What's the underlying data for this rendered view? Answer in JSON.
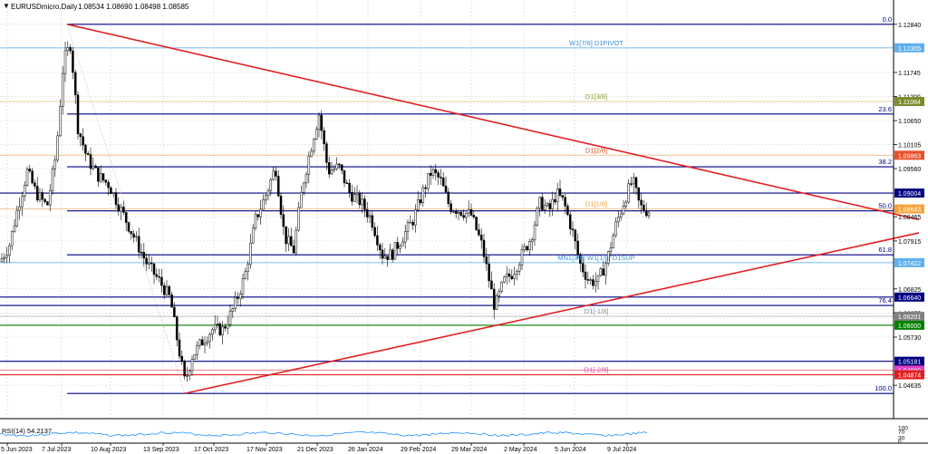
{
  "header": {
    "symbol_label": "EURUSDmicro,Daily",
    "ohlc": "1.08534 1.08690 1.08498 1.08585",
    "menu_icon": "triangle-down-icon"
  },
  "chart_data": {
    "type": "candlestick",
    "symbol": "EURUSDmicro",
    "timeframe": "Daily",
    "ylim": [
      1.04,
      1.1298
    ],
    "price_ticks": [
      "1.12840",
      "1.11745",
      "1.11200",
      "1.10650",
      "1.10105",
      "1.09560",
      "1.08465",
      "1.07915",
      "1.06825",
      "1.06275",
      "1.05730",
      "1.04635"
    ],
    "date_ticks": [
      "5 Jun 2023",
      "7 Jul 2023",
      "10 Aug 2023",
      "13 Sep 2023",
      "17 Oct 2023",
      "17 Nov 2023",
      "21 Dec 2023",
      "26 Jan 2024",
      "29 Feb 2024",
      "29 Mar 2024",
      "2 May 2024",
      "5 Jun 2024",
      "9 Jul 2024"
    ],
    "close_path": [
      {
        "x": 0,
        "y": 1.0745
      },
      {
        "x": 10,
        "y": 1.078
      },
      {
        "x": 20,
        "y": 1.087
      },
      {
        "x": 30,
        "y": 1.095
      },
      {
        "x": 40,
        "y": 1.09
      },
      {
        "x": 52,
        "y": 1.087
      },
      {
        "x": 62,
        "y": 1.099
      },
      {
        "x": 70,
        "y": 1.12
      },
      {
        "x": 78,
        "y": 1.124
      },
      {
        "x": 86,
        "y": 1.105
      },
      {
        "x": 96,
        "y": 1.098
      },
      {
        "x": 108,
        "y": 1.094
      },
      {
        "x": 120,
        "y": 1.092
      },
      {
        "x": 134,
        "y": 1.086
      },
      {
        "x": 148,
        "y": 1.08
      },
      {
        "x": 162,
        "y": 1.074
      },
      {
        "x": 176,
        "y": 1.07
      },
      {
        "x": 188,
        "y": 1.066
      },
      {
        "x": 196,
        "y": 1.056
      },
      {
        "x": 204,
        "y": 1.047
      },
      {
        "x": 212,
        "y": 1.053
      },
      {
        "x": 222,
        "y": 1.056
      },
      {
        "x": 234,
        "y": 1.059
      },
      {
        "x": 246,
        "y": 1.059
      },
      {
        "x": 258,
        "y": 1.064
      },
      {
        "x": 270,
        "y": 1.071
      },
      {
        "x": 282,
        "y": 1.084
      },
      {
        "x": 294,
        "y": 1.09
      },
      {
        "x": 304,
        "y": 1.096
      },
      {
        "x": 314,
        "y": 1.08
      },
      {
        "x": 324,
        "y": 1.077
      },
      {
        "x": 334,
        "y": 1.092
      },
      {
        "x": 346,
        "y": 1.103
      },
      {
        "x": 352,
        "y": 1.108
      },
      {
        "x": 362,
        "y": 1.095
      },
      {
        "x": 374,
        "y": 1.096
      },
      {
        "x": 386,
        "y": 1.09
      },
      {
        "x": 398,
        "y": 1.088
      },
      {
        "x": 410,
        "y": 1.084
      },
      {
        "x": 422,
        "y": 1.076
      },
      {
        "x": 432,
        "y": 1.076
      },
      {
        "x": 444,
        "y": 1.08
      },
      {
        "x": 456,
        "y": 1.084
      },
      {
        "x": 466,
        "y": 1.09
      },
      {
        "x": 476,
        "y": 1.095
      },
      {
        "x": 486,
        "y": 1.093
      },
      {
        "x": 496,
        "y": 1.087
      },
      {
        "x": 508,
        "y": 1.086
      },
      {
        "x": 520,
        "y": 1.085
      },
      {
        "x": 532,
        "y": 1.078
      },
      {
        "x": 540,
        "y": 1.07
      },
      {
        "x": 546,
        "y": 1.064
      },
      {
        "x": 556,
        "y": 1.07
      },
      {
        "x": 566,
        "y": 1.072
      },
      {
        "x": 576,
        "y": 1.076
      },
      {
        "x": 586,
        "y": 1.08
      },
      {
        "x": 596,
        "y": 1.088
      },
      {
        "x": 606,
        "y": 1.086
      },
      {
        "x": 614,
        "y": 1.09
      },
      {
        "x": 622,
        "y": 1.088
      },
      {
        "x": 632,
        "y": 1.081
      },
      {
        "x": 640,
        "y": 1.074
      },
      {
        "x": 650,
        "y": 1.07
      },
      {
        "x": 660,
        "y": 1.07
      },
      {
        "x": 670,
        "y": 1.075
      },
      {
        "x": 680,
        "y": 1.083
      },
      {
        "x": 690,
        "y": 1.089
      },
      {
        "x": 698,
        "y": 1.093
      },
      {
        "x": 706,
        "y": 1.087
      },
      {
        "x": 714,
        "y": 1.086
      }
    ],
    "levels": [
      {
        "value": 1.1284,
        "color": "#000080",
        "style": "solid",
        "label": "0.0",
        "label_color": "#000080",
        "tag": ""
      },
      {
        "value": 1.12305,
        "color": "#87c4f0",
        "style": "solid",
        "label": "W1[7/8] D1PIVOT",
        "label_color": "#3a8fd6",
        "tag": "1.12305"
      },
      {
        "value": 1.11084,
        "color": "#e6d6a6",
        "style": "solid",
        "label": "D1[3/8]",
        "label_color": "#8a9a2e",
        "tag": "1.11084"
      },
      {
        "value": 1.108,
        "color": "#000080",
        "style": "solid",
        "label": "23.6",
        "label_color": "#000080",
        "tag": ""
      },
      {
        "value": 1.09863,
        "color": "#f3c89c",
        "style": "solid",
        "label": "D1[2/8]",
        "label_color": "#e24b1e",
        "tag": "1.09863"
      },
      {
        "value": 1.096,
        "color": "#000080",
        "style": "solid",
        "label": "38.2",
        "label_color": "#000080",
        "tag": ""
      },
      {
        "value": 1.09004,
        "color": "#000080",
        "style": "solid",
        "label": "",
        "label_color": "#000080",
        "tag": "1.09004"
      },
      {
        "value": 1.08643,
        "color": "#f3c89c",
        "style": "solid",
        "label": "D1[1/8]",
        "label_color": "#f39c3a",
        "tag": "1.08643"
      },
      {
        "value": 1.086,
        "color": "#000080",
        "style": "solid",
        "label": "50.0",
        "label_color": "#000080",
        "tag": ""
      },
      {
        "value": 1.076,
        "color": "#000080",
        "style": "solid",
        "label": "61.8",
        "label_color": "#000080",
        "tag": ""
      },
      {
        "value": 1.07422,
        "color": "#87c4f0",
        "style": "solid",
        "label": "MN1[3/8] W1[1/8] D1SUP",
        "label_color": "#3a8fd6",
        "tag": "1.07422"
      },
      {
        "value": 1.0664,
        "color": "#000080",
        "style": "solid",
        "label": "",
        "label_color": "#000080",
        "tag": "1.06640"
      },
      {
        "value": 1.0645,
        "color": "#000080",
        "style": "solid",
        "label": "76.4",
        "label_color": "#000080",
        "tag": ""
      },
      {
        "value": 1.06201,
        "color": "#c0c0c0",
        "style": "solid",
        "label": "D1[-1/8]",
        "label_color": "#8a8a8a",
        "tag": "1.06201"
      },
      {
        "value": 1.06,
        "color": "#008000",
        "style": "solid",
        "label": "",
        "label_color": "#008000",
        "tag": "1.06000"
      },
      {
        "value": 1.05181,
        "color": "#000080",
        "style": "solid",
        "label": "",
        "label_color": "#000080",
        "tag": "1.05181"
      },
      {
        "value": 1.0498,
        "color": "#f09090",
        "style": "solid",
        "label": "",
        "label_color": "#e040c0",
        "tag": "1.04980"
      },
      {
        "value": 1.04874,
        "color": "#e02020",
        "style": "solid",
        "label": "D1[-2/8]",
        "label_color": "#e040c0",
        "tag": "1.04874"
      },
      {
        "value": 1.0445,
        "color": "#000080",
        "style": "solid",
        "label": "100.0",
        "label_color": "#000080",
        "tag": ""
      }
    ],
    "tag_colors": {
      "1.12305": "#5fb0ee",
      "1.11084": "#7c8c2a",
      "1.09863": "#e8502a",
      "1.09004": "#000080",
      "1.08643": "#f6a33a",
      "1.07422": "#5fb0ee",
      "1.06640": "#000080",
      "1.06201": "#808080",
      "1.06000": "#008000",
      "1.05181": "#000080",
      "1.04980": "#e040c0",
      "1.04874": "#e02020"
    },
    "trendlines": [
      {
        "name": "resistance",
        "color": "#e02020",
        "from": {
          "x": 74,
          "y": 1.1284
        },
        "to": {
          "x": 1014,
          "y": 1.084
        }
      },
      {
        "name": "support",
        "color": "#e02020",
        "from": {
          "x": 204,
          "y": 1.0445
        },
        "to": {
          "x": 1014,
          "y": 1.081
        }
      }
    ],
    "rsi": {
      "label": "RSI(14) 54.2137",
      "levels": [
        "100",
        "70",
        "30",
        "0"
      ]
    },
    "grid": true
  }
}
